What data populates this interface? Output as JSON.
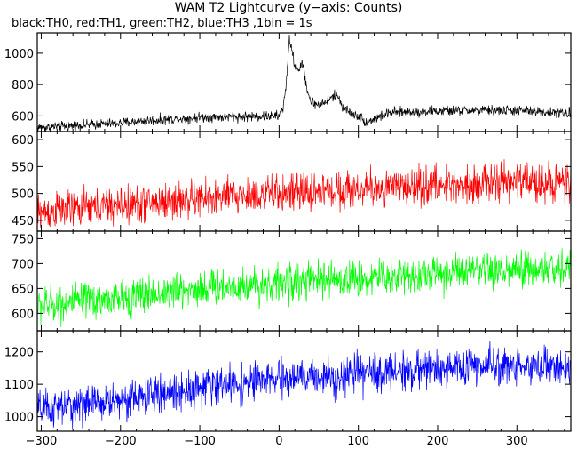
{
  "header": {
    "title": "WAM T2 Lightcurve (y−axis: Counts)",
    "subtitle": "black:TH0, red:TH1, green:TH2, blue:TH3 ,1bin = 1s"
  },
  "chart_data": {
    "type": "line",
    "xlim": [
      -305,
      368
    ],
    "x_ticks": [
      -300,
      -200,
      -100,
      0,
      100,
      200,
      300
    ],
    "x_ticklabels": [
      "−300",
      "−200",
      "−100",
      "0",
      "100",
      "200",
      "300"
    ],
    "panels": [
      {
        "channel": "TH0",
        "color": "#000000",
        "ylim": [
          500,
          1130
        ],
        "y_ticks": [
          600,
          800,
          1000
        ],
        "y_ticklabels": [
          "600",
          "800",
          "1000"
        ],
        "x": [
          -305,
          -250,
          -200,
          -150,
          -100,
          -50,
          0,
          5,
          10,
          13,
          16,
          20,
          25,
          30,
          35,
          40,
          50,
          60,
          70,
          75,
          80,
          90,
          100,
          110,
          120,
          140,
          160,
          200,
          250,
          300,
          368
        ],
        "y": [
          525,
          540,
          555,
          575,
          590,
          595,
          600,
          650,
          850,
          1100,
          1020,
          920,
          900,
          930,
          780,
          690,
          670,
          690,
          730,
          720,
          660,
          620,
          600,
          560,
          580,
          620,
          625,
          630,
          635,
          635,
          615
        ],
        "noise": 28
      },
      {
        "channel": "TH1",
        "color": "#ff0000",
        "ylim": [
          430,
          615
        ],
        "y_ticks": [
          450,
          500,
          550,
          600
        ],
        "y_ticklabels": [
          "450",
          "500",
          "550",
          "600"
        ],
        "x": [
          -305,
          -200,
          -100,
          0,
          100,
          200,
          300,
          368
        ],
        "y": [
          465,
          478,
          490,
          500,
          508,
          515,
          522,
          520
        ],
        "noise": 30
      },
      {
        "channel": "TH2",
        "color": "#00ff00",
        "ylim": [
          565,
          765
        ],
        "y_ticks": [
          600,
          650,
          700,
          750
        ],
        "y_ticklabels": [
          "600",
          "650",
          "700",
          "750"
        ],
        "x": [
          -305,
          -200,
          -100,
          0,
          100,
          200,
          300,
          368
        ],
        "y": [
          615,
          630,
          650,
          660,
          670,
          680,
          685,
          690
        ],
        "noise": 32
      },
      {
        "channel": "TH3",
        "color": "#0000ff",
        "ylim": [
          955,
          1265
        ],
        "y_ticks": [
          1000,
          1100,
          1200
        ],
        "y_ticklabels": [
          "1000",
          "1100",
          "1200"
        ],
        "x": [
          -305,
          -200,
          -100,
          0,
          100,
          200,
          300,
          368
        ],
        "y": [
          1020,
          1050,
          1090,
          1115,
          1130,
          1150,
          1160,
          1150
        ],
        "noise": 50
      }
    ]
  }
}
